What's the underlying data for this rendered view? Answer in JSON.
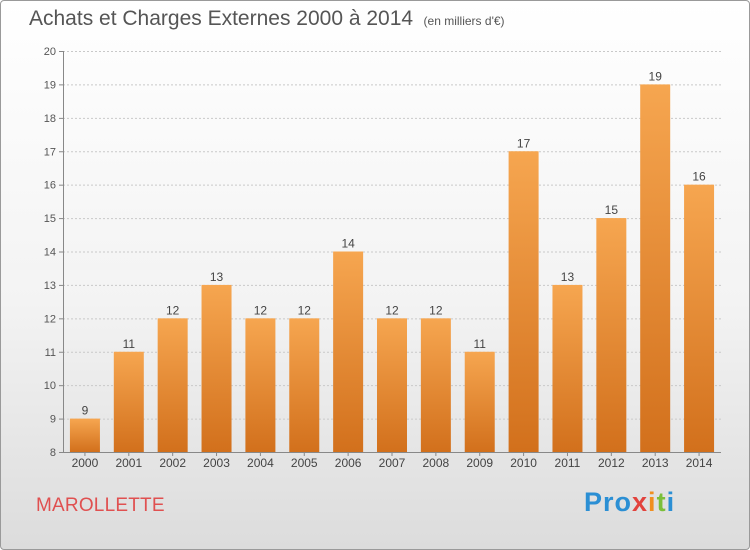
{
  "chart_data": {
    "type": "bar",
    "title": "Achats et Charges Externes 2000 à 2014",
    "unit_label": "(en milliers d'€)",
    "categories": [
      "2000",
      "2001",
      "2002",
      "2003",
      "2004",
      "2005",
      "2006",
      "2007",
      "2008",
      "2009",
      "2010",
      "2011",
      "2012",
      "2013",
      "2014"
    ],
    "values": [
      9,
      11,
      12,
      13,
      12,
      12,
      14,
      12,
      12,
      11,
      17,
      13,
      15,
      19,
      16
    ],
    "ylim": [
      8,
      20
    ],
    "yticks": [
      8,
      9,
      10,
      11,
      12,
      13,
      14,
      15,
      16,
      17,
      18,
      19,
      20
    ],
    "grid": true,
    "xlabel": "",
    "ylabel": ""
  },
  "commune": "MAROLLETTE",
  "logo": {
    "p1": "Pro",
    "p2": "x",
    "p3": "i",
    "p4": "t",
    "p5": "i"
  },
  "colors": {
    "bar_top": "#f6a650",
    "bar_bottom": "#d2701c",
    "commune": "#e05050"
  }
}
